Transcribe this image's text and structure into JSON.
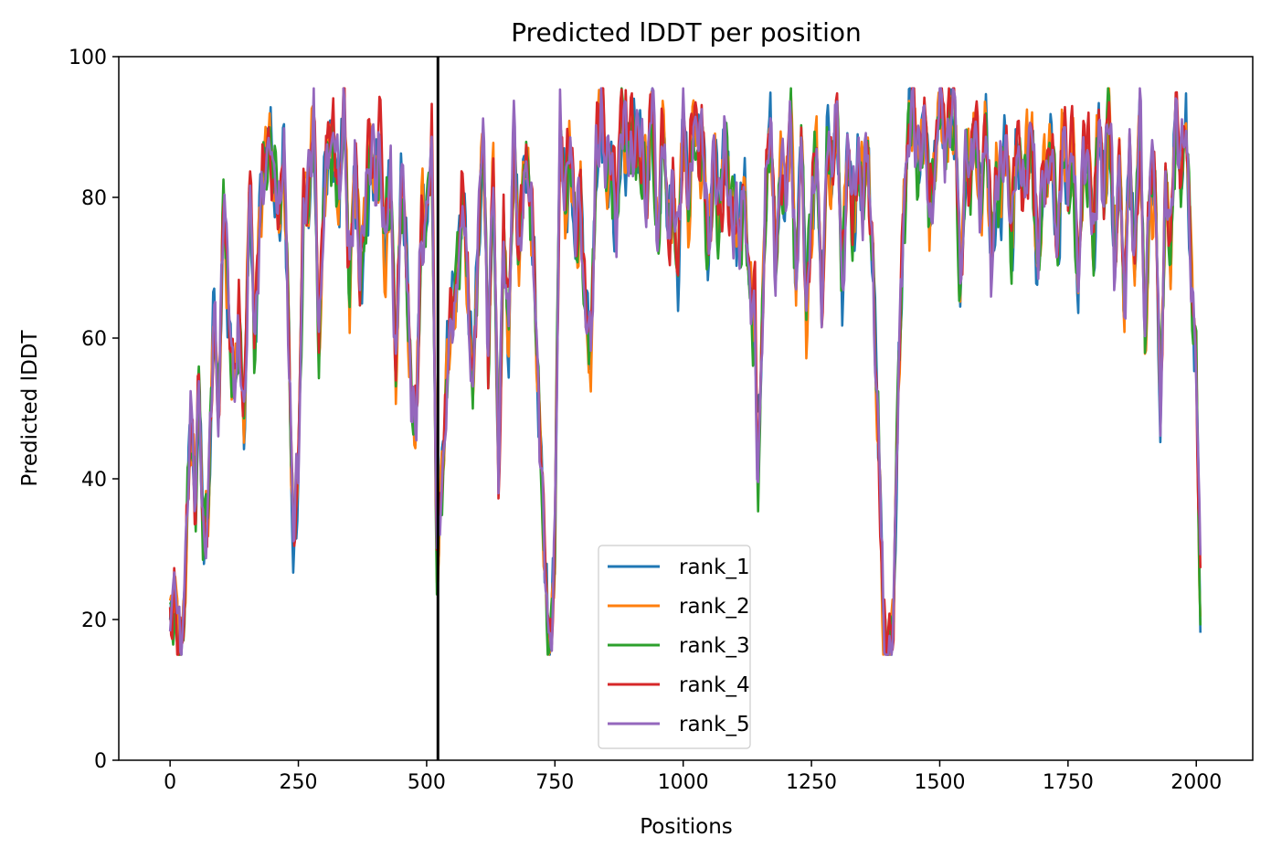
{
  "chart_data": {
    "type": "line",
    "title": "Predicted lDDT per position",
    "xlabel": "Positions",
    "ylabel": "Predicted lDDT",
    "xlim": [
      -100,
      2110
    ],
    "ylim": [
      0,
      100
    ],
    "xticks": [
      0,
      250,
      500,
      750,
      1000,
      1250,
      1500,
      1750,
      2000
    ],
    "yticks": [
      0,
      20,
      40,
      60,
      80,
      100
    ],
    "grid": false,
    "legend_position": "lower-center",
    "vertical_line": {
      "x": 522,
      "color": "#000000"
    },
    "profile": [
      [
        0,
        22
      ],
      [
        10,
        21
      ],
      [
        20,
        17
      ],
      [
        30,
        28
      ],
      [
        40,
        47
      ],
      [
        50,
        38
      ],
      [
        55,
        58
      ],
      [
        65,
        28
      ],
      [
        75,
        38
      ],
      [
        85,
        68
      ],
      [
        95,
        48
      ],
      [
        105,
        82
      ],
      [
        115,
        65
      ],
      [
        125,
        52
      ],
      [
        135,
        62
      ],
      [
        145,
        50
      ],
      [
        155,
        80
      ],
      [
        165,
        60
      ],
      [
        175,
        80
      ],
      [
        185,
        85
      ],
      [
        195,
        88
      ],
      [
        205,
        84
      ],
      [
        215,
        74
      ],
      [
        222,
        86
      ],
      [
        232,
        60
      ],
      [
        240,
        30
      ],
      [
        250,
        40
      ],
      [
        260,
        82
      ],
      [
        270,
        78
      ],
      [
        280,
        90
      ],
      [
        290,
        62
      ],
      [
        300,
        80
      ],
      [
        310,
        86
      ],
      [
        320,
        90
      ],
      [
        330,
        78
      ],
      [
        340,
        90
      ],
      [
        350,
        70
      ],
      [
        360,
        85
      ],
      [
        370,
        68
      ],
      [
        380,
        80
      ],
      [
        390,
        86
      ],
      [
        400,
        80
      ],
      [
        410,
        90
      ],
      [
        420,
        72
      ],
      [
        430,
        80
      ],
      [
        440,
        58
      ],
      [
        450,
        82
      ],
      [
        460,
        70
      ],
      [
        470,
        55
      ],
      [
        480,
        47
      ],
      [
        490,
        75
      ],
      [
        500,
        80
      ],
      [
        510,
        86
      ],
      [
        520,
        25
      ],
      [
        530,
        45
      ],
      [
        540,
        55
      ],
      [
        550,
        62
      ],
      [
        560,
        72
      ],
      [
        570,
        80
      ],
      [
        580,
        65
      ],
      [
        590,
        55
      ],
      [
        600,
        72
      ],
      [
        610,
        86
      ],
      [
        620,
        60
      ],
      [
        630,
        85
      ],
      [
        640,
        38
      ],
      [
        650,
        80
      ],
      [
        660,
        60
      ],
      [
        670,
        86
      ],
      [
        680,
        75
      ],
      [
        690,
        85
      ],
      [
        700,
        80
      ],
      [
        710,
        72
      ],
      [
        720,
        45
      ],
      [
        730,
        25
      ],
      [
        740,
        18
      ],
      [
        750,
        28
      ],
      [
        760,
        88
      ],
      [
        770,
        82
      ],
      [
        780,
        86
      ],
      [
        790,
        70
      ],
      [
        800,
        85
      ],
      [
        810,
        60
      ],
      [
        820,
        55
      ],
      [
        830,
        90
      ],
      [
        840,
        92
      ],
      [
        850,
        82
      ],
      [
        860,
        88
      ],
      [
        870,
        75
      ],
      [
        880,
        90
      ],
      [
        890,
        92
      ],
      [
        900,
        88
      ],
      [
        910,
        85
      ],
      [
        920,
        90
      ],
      [
        930,
        80
      ],
      [
        940,
        92
      ],
      [
        950,
        75
      ],
      [
        960,
        88
      ],
      [
        970,
        72
      ],
      [
        980,
        85
      ],
      [
        990,
        68
      ],
      [
        1000,
        90
      ],
      [
        1010,
        82
      ],
      [
        1020,
        92
      ],
      [
        1030,
        85
      ],
      [
        1040,
        90
      ],
      [
        1050,
        70
      ],
      [
        1060,
        86
      ],
      [
        1070,
        80
      ],
      [
        1080,
        85
      ],
      [
        1090,
        78
      ],
      [
        1100,
        82
      ],
      [
        1110,
        72
      ],
      [
        1120,
        80
      ],
      [
        1130,
        70
      ],
      [
        1140,
        60
      ],
      [
        1145,
        37
      ],
      [
        1150,
        50
      ],
      [
        1160,
        80
      ],
      [
        1170,
        90
      ],
      [
        1180,
        70
      ],
      [
        1190,
        88
      ],
      [
        1200,
        78
      ],
      [
        1210,
        90
      ],
      [
        1220,
        70
      ],
      [
        1230,
        88
      ],
      [
        1240,
        62
      ],
      [
        1250,
        80
      ],
      [
        1260,
        86
      ],
      [
        1270,
        62
      ],
      [
        1280,
        90
      ],
      [
        1290,
        80
      ],
      [
        1300,
        88
      ],
      [
        1310,
        70
      ],
      [
        1320,
        86
      ],
      [
        1330,
        75
      ],
      [
        1340,
        88
      ],
      [
        1350,
        78
      ],
      [
        1360,
        85
      ],
      [
        1370,
        72
      ],
      [
        1380,
        45
      ],
      [
        1390,
        18
      ],
      [
        1400,
        16
      ],
      [
        1410,
        18
      ],
      [
        1420,
        55
      ],
      [
        1430,
        80
      ],
      [
        1440,
        90
      ],
      [
        1450,
        92
      ],
      [
        1460,
        88
      ],
      [
        1470,
        90
      ],
      [
        1480,
        78
      ],
      [
        1490,
        88
      ],
      [
        1500,
        92
      ],
      [
        1510,
        88
      ],
      [
        1520,
        95
      ],
      [
        1530,
        90
      ],
      [
        1540,
        65
      ],
      [
        1550,
        88
      ],
      [
        1560,
        80
      ],
      [
        1570,
        90
      ],
      [
        1580,
        82
      ],
      [
        1590,
        88
      ],
      [
        1600,
        72
      ],
      [
        1610,
        85
      ],
      [
        1620,
        80
      ],
      [
        1630,
        88
      ],
      [
        1640,
        75
      ],
      [
        1650,
        85
      ],
      [
        1660,
        80
      ],
      [
        1670,
        88
      ],
      [
        1680,
        85
      ],
      [
        1690,
        70
      ],
      [
        1700,
        85
      ],
      [
        1710,
        82
      ],
      [
        1720,
        85
      ],
      [
        1730,
        75
      ],
      [
        1740,
        88
      ],
      [
        1750,
        82
      ],
      [
        1760,
        90
      ],
      [
        1770,
        65
      ],
      [
        1780,
        85
      ],
      [
        1790,
        88
      ],
      [
        1800,
        72
      ],
      [
        1810,
        90
      ],
      [
        1820,
        82
      ],
      [
        1830,
        90
      ],
      [
        1840,
        70
      ],
      [
        1850,
        88
      ],
      [
        1860,
        62
      ],
      [
        1870,
        85
      ],
      [
        1880,
        72
      ],
      [
        1890,
        88
      ],
      [
        1900,
        60
      ],
      [
        1910,
        85
      ],
      [
        1920,
        78
      ],
      [
        1930,
        50
      ],
      [
        1940,
        85
      ],
      [
        1950,
        70
      ],
      [
        1960,
        92
      ],
      [
        1970,
        85
      ],
      [
        1980,
        88
      ],
      [
        1990,
        70
      ],
      [
        2000,
        60
      ],
      [
        2008,
        22
      ]
    ],
    "series": [
      {
        "name": "rank_1",
        "color": "#1f77b4",
        "noise_seed": 11,
        "offset": -0.5
      },
      {
        "name": "rank_2",
        "color": "#ff7f0e",
        "noise_seed": 23,
        "offset": -0.3
      },
      {
        "name": "rank_3",
        "color": "#2ca02c",
        "noise_seed": 37,
        "offset": -0.8
      },
      {
        "name": "rank_4",
        "color": "#d62728",
        "noise_seed": 53,
        "offset": 0.8
      },
      {
        "name": "rank_5",
        "color": "#9467bd",
        "noise_seed": 71,
        "offset": 0.0
      }
    ]
  }
}
